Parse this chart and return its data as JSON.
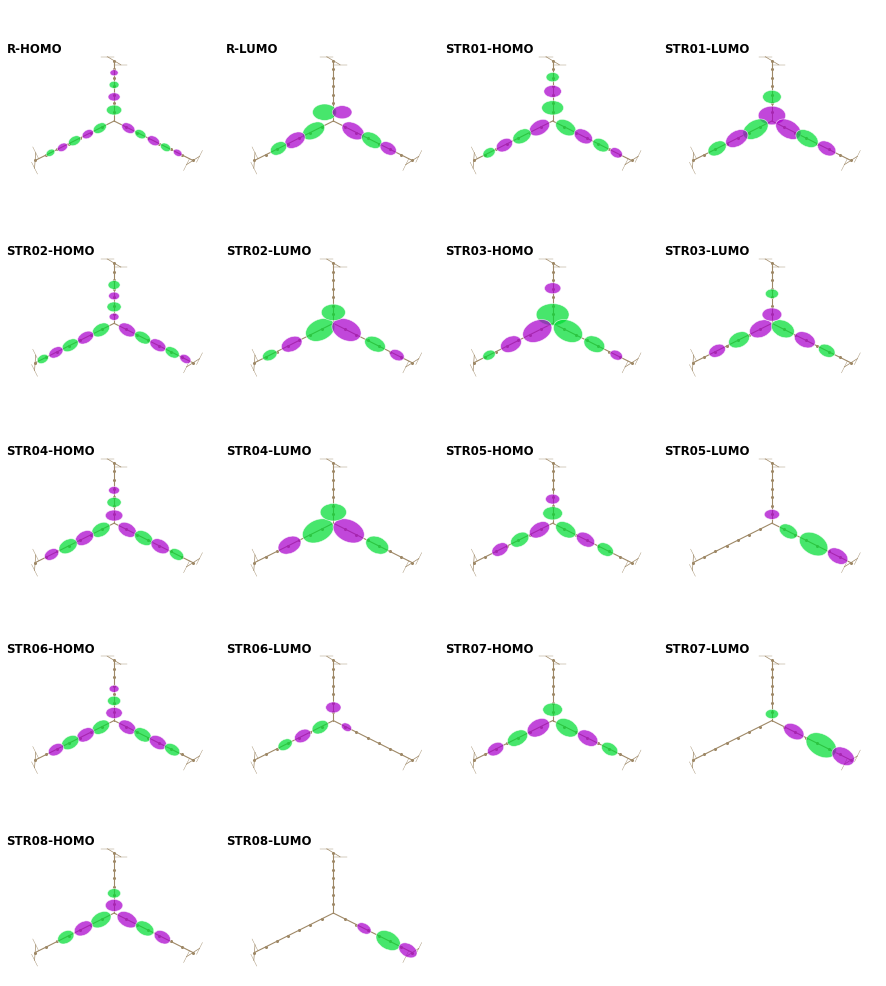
{
  "background_color": "#ffffff",
  "fig_width": 8.86,
  "fig_height": 9.87,
  "dpi": 100,
  "label_fontsize": 8.5,
  "label_fontweight": "bold",
  "label_color": "#000000",
  "green": "#00dd33",
  "purple": "#aa00cc",
  "lobe_alpha": 0.72,
  "panels": [
    [
      "R-HOMO",
      "R-LUMO",
      "STR01-HOMO",
      "STR01-LUMO"
    ],
    [
      "STR02-HOMO",
      "STR02-LUMO",
      "STR03-HOMO",
      "STR03-LUMO"
    ],
    [
      "STR04-HOMO",
      "STR04-LUMO",
      "STR05-HOMO",
      "STR05-LUMO"
    ],
    [
      "STR06-HOMO",
      "STR06-LUMO",
      "STR07-HOMO",
      "STR07-LUMO"
    ],
    [
      "STR08-HOMO",
      "STR08-LUMO",
      "",
      ""
    ]
  ]
}
